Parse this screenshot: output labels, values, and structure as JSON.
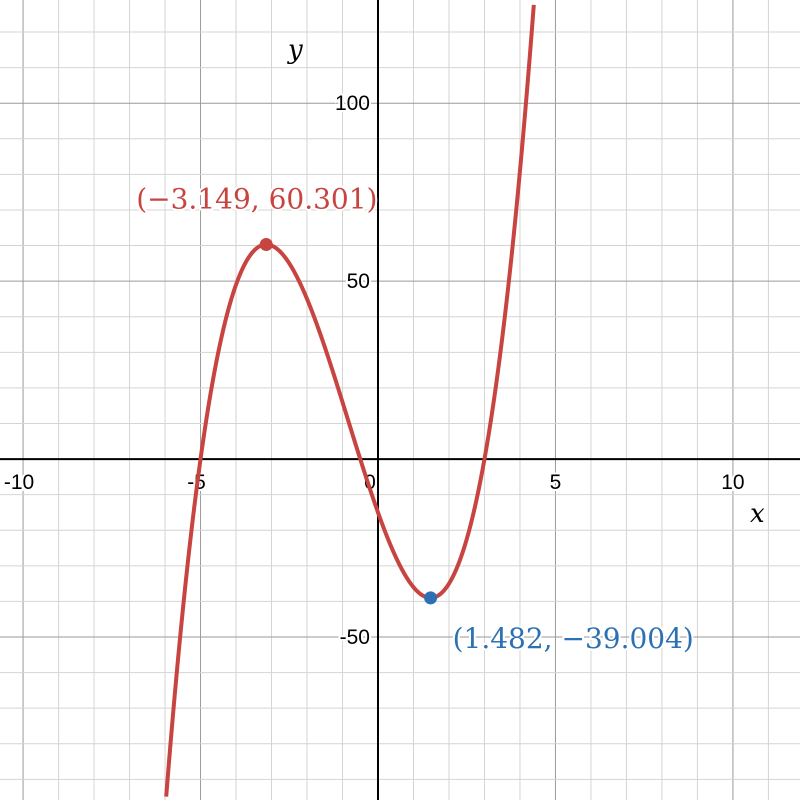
{
  "chart_data": {
    "type": "line",
    "title": "",
    "xlabel": "x",
    "ylabel": "y",
    "xlim": [
      -10.65,
      11.89
    ],
    "ylim": [
      -95.8,
      129
    ],
    "grid": true,
    "x_minor_step": 1,
    "x_major_step": 5,
    "y_minor_step": 10,
    "y_major_step": 50,
    "x_ticks": [
      {
        "value": -10,
        "label": "-10"
      },
      {
        "value": -5,
        "label": "-5"
      },
      {
        "value": 0,
        "label": "0"
      },
      {
        "value": 5,
        "label": "5"
      },
      {
        "value": 10,
        "label": "10"
      }
    ],
    "y_ticks": [
      {
        "value": 100,
        "label": "100"
      },
      {
        "value": 50,
        "label": "50"
      },
      {
        "value": -50,
        "label": "-50"
      }
    ],
    "series": [
      {
        "function_coefficients": [
          2,
          5,
          -28,
          -15
        ],
        "color": "#c74440"
      }
    ],
    "points": [
      {
        "x": -3.149,
        "y": 60.301,
        "label": "(−3.149, 60.301)",
        "color": "#c74440"
      },
      {
        "x": 1.482,
        "y": -39.004,
        "label": "(1.482, −39.004)",
        "color": "#2d70b3"
      }
    ]
  }
}
